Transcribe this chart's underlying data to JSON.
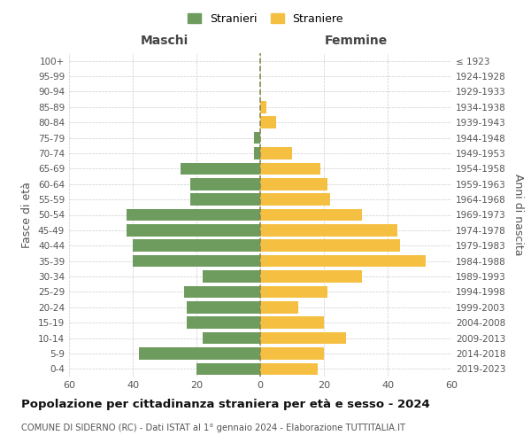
{
  "age_groups": [
    "100+",
    "95-99",
    "90-94",
    "85-89",
    "80-84",
    "75-79",
    "70-74",
    "65-69",
    "60-64",
    "55-59",
    "50-54",
    "45-49",
    "40-44",
    "35-39",
    "30-34",
    "25-29",
    "20-24",
    "15-19",
    "10-14",
    "5-9",
    "0-4"
  ],
  "birth_years": [
    "≤ 1923",
    "1924-1928",
    "1929-1933",
    "1934-1938",
    "1939-1943",
    "1944-1948",
    "1949-1953",
    "1954-1958",
    "1959-1963",
    "1964-1968",
    "1969-1973",
    "1974-1978",
    "1979-1983",
    "1984-1988",
    "1989-1993",
    "1994-1998",
    "1999-2003",
    "2004-2008",
    "2009-2013",
    "2014-2018",
    "2019-2023"
  ],
  "maschi": [
    0,
    0,
    0,
    0,
    0,
    2,
    2,
    25,
    22,
    22,
    42,
    42,
    40,
    40,
    18,
    24,
    23,
    23,
    18,
    38,
    20
  ],
  "femmine": [
    0,
    0,
    0,
    2,
    5,
    0,
    10,
    19,
    21,
    22,
    32,
    43,
    44,
    52,
    32,
    21,
    12,
    20,
    27,
    20,
    18
  ],
  "maschi_color": "#6e9c5e",
  "femmine_color": "#f5bf42",
  "background_color": "#ffffff",
  "grid_color": "#cccccc",
  "center_line_color": "#888855",
  "title": "Popolazione per cittadinanza straniera per età e sesso - 2024",
  "subtitle": "COMUNE DI SIDERNO (RC) - Dati ISTAT al 1° gennaio 2024 - Elaborazione TUTTITALIA.IT",
  "xlabel_left": "Maschi",
  "xlabel_right": "Femmine",
  "ylabel_left": "Fasce di età",
  "ylabel_right": "Anni di nascita",
  "legend_maschi": "Stranieri",
  "legend_femmine": "Straniere",
  "xlim": 60
}
